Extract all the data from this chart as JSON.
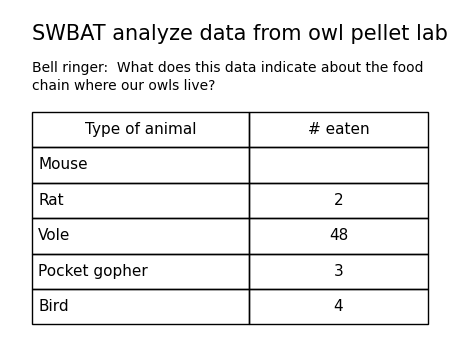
{
  "title": "SWBAT analyze data from owl pellet lab",
  "subtitle": "Bell ringer:  What does this data indicate about the food\nchain where our owls live?",
  "col_headers": [
    "Type of animal",
    "# eaten"
  ],
  "rows": [
    [
      "Mouse",
      ""
    ],
    [
      "Rat",
      "2"
    ],
    [
      "Vole",
      "48"
    ],
    [
      "Pocket gopher",
      "3"
    ],
    [
      "Bird",
      "4"
    ]
  ],
  "background_color": "#ffffff",
  "table_border_color": "#000000",
  "title_fontsize": 15,
  "subtitle_fontsize": 10,
  "header_fontsize": 11,
  "cell_fontsize": 11
}
